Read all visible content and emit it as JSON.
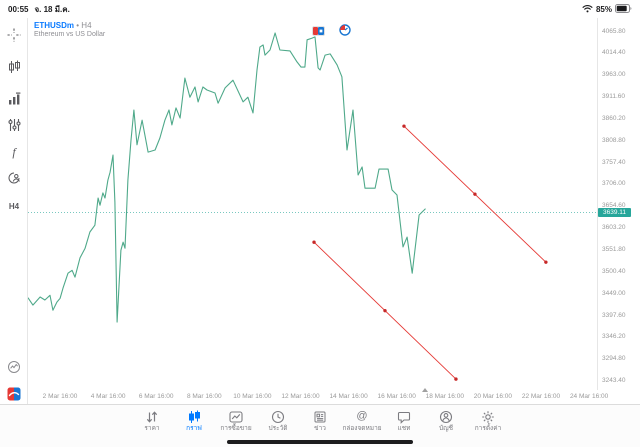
{
  "status_bar": {
    "time": "00:55",
    "date": "จ. 18 มี.ค.",
    "battery_percent": "85%"
  },
  "chart_header": {
    "symbol": "ETHUSDm",
    "separator": "•",
    "timeframe": "H4",
    "description": "Ethereum vs US Dollar"
  },
  "left_toolbar": {
    "timeframe_label": "H4",
    "function_glyph": "f",
    "icons": [
      "crosshair",
      "chart-style-candles",
      "volumes",
      "indicator-sliders",
      "functions",
      "objects",
      "timeframe",
      "tick-chart",
      "brand-app"
    ]
  },
  "chart_data": {
    "type": "line",
    "title": "Ethereum vs US Dollar",
    "symbol": "ETHUSDm",
    "timeframe": "H4",
    "line_color": "#4fa98a",
    "trend_color": "#e53935",
    "trend_dot_color": "#c62828",
    "current_price_color": "#4db6ac",
    "current_price": 3639.11,
    "current_price_label": "3639.11",
    "ylim": [
      3221,
      4096
    ],
    "y_ticks": [
      4065.8,
      4014.4,
      3963.0,
      3911.6,
      3860.2,
      3808.8,
      3757.4,
      3706.0,
      3654.6,
      3603.2,
      3551.8,
      3500.4,
      3449.0,
      3397.6,
      3346.2,
      3294.8,
      3243.4
    ],
    "x_unit": "day of March (.667 = 16:00)",
    "x_ticks": [
      {
        "day": 2.667,
        "label": "2 Mar 16:00"
      },
      {
        "day": 4.667,
        "label": "4 Mar 16:00"
      },
      {
        "day": 6.667,
        "label": "6 Mar 16:00"
      },
      {
        "day": 8.667,
        "label": "8 Mar 16:00"
      },
      {
        "day": 10.667,
        "label": "10 Mar 16:00"
      },
      {
        "day": 12.667,
        "label": "12 Mar 16:00"
      },
      {
        "day": 14.667,
        "label": "14 Mar 16:00"
      },
      {
        "day": 16.667,
        "label": "16 Mar 16:00"
      },
      {
        "day": 18.667,
        "label": "18 Mar 16:00"
      },
      {
        "day": 20.667,
        "label": "20 Mar 16:00"
      },
      {
        "day": 22.667,
        "label": "22 Mar 16:00"
      },
      {
        "day": 24.667,
        "label": "24 Mar 16:00"
      }
    ],
    "series": [
      {
        "name": "ETHUSDm close (H4)",
        "points": [
          [
            1.34,
            3438
          ],
          [
            1.54,
            3421
          ],
          [
            1.84,
            3440
          ],
          [
            2.04,
            3433
          ],
          [
            2.25,
            3444
          ],
          [
            2.37,
            3409
          ],
          [
            2.54,
            3428
          ],
          [
            2.67,
            3437
          ],
          [
            2.79,
            3461
          ],
          [
            3.0,
            3496
          ],
          [
            3.17,
            3503
          ],
          [
            3.29,
            3487
          ],
          [
            3.5,
            3532
          ],
          [
            3.71,
            3555
          ],
          [
            3.91,
            3593
          ],
          [
            4.12,
            3609
          ],
          [
            4.25,
            3673
          ],
          [
            4.33,
            3656
          ],
          [
            4.45,
            3685
          ],
          [
            4.54,
            3673
          ],
          [
            4.66,
            3715
          ],
          [
            4.75,
            3734
          ],
          [
            4.87,
            3774
          ],
          [
            4.95,
            3663
          ],
          [
            5.04,
            3381
          ],
          [
            5.2,
            3550
          ],
          [
            5.29,
            3569
          ],
          [
            5.37,
            3555
          ],
          [
            5.49,
            3715
          ],
          [
            5.62,
            3809
          ],
          [
            5.74,
            3880
          ],
          [
            5.87,
            3798
          ],
          [
            6.08,
            3856
          ],
          [
            6.33,
            3781
          ],
          [
            6.62,
            3786
          ],
          [
            6.82,
            3814
          ],
          [
            7.03,
            3856
          ],
          [
            7.2,
            3880
          ],
          [
            7.32,
            3845
          ],
          [
            7.49,
            3885
          ],
          [
            7.66,
            3861
          ],
          [
            7.86,
            3955
          ],
          [
            8.07,
            3910
          ],
          [
            8.28,
            3934
          ],
          [
            8.41,
            3899
          ],
          [
            8.61,
            3934
          ],
          [
            8.78,
            3927
          ],
          [
            9.11,
            3920
          ],
          [
            9.24,
            3896
          ],
          [
            9.53,
            3932
          ],
          [
            9.86,
            3950
          ],
          [
            10.28,
            3899
          ],
          [
            10.48,
            3910
          ],
          [
            10.69,
            3873
          ],
          [
            10.86,
            3974
          ],
          [
            10.98,
            4028
          ],
          [
            11.11,
            4033
          ],
          [
            11.19,
            4009
          ],
          [
            11.4,
            4021
          ],
          [
            11.61,
            4061
          ],
          [
            11.81,
            4021
          ],
          [
            12.23,
            4019
          ],
          [
            12.52,
            3993
          ],
          [
            12.69,
            3981
          ],
          [
            12.85,
            3981
          ],
          [
            12.94,
            4045
          ],
          [
            13.15,
            4049
          ],
          [
            13.27,
            4052
          ],
          [
            13.4,
            3979
          ],
          [
            13.48,
            3974
          ],
          [
            13.69,
            4009
          ],
          [
            13.9,
            4012
          ],
          [
            14.19,
            3986
          ],
          [
            14.39,
            3958
          ],
          [
            14.6,
            3786
          ],
          [
            14.85,
            3880
          ],
          [
            15.06,
            3727
          ],
          [
            15.23,
            3746
          ],
          [
            15.35,
            3696
          ],
          [
            15.77,
            3696
          ],
          [
            15.93,
            3741
          ],
          [
            16.31,
            3741
          ],
          [
            16.47,
            3692
          ],
          [
            16.68,
            3680
          ],
          [
            16.93,
            3558
          ],
          [
            17.1,
            3581
          ],
          [
            17.31,
            3496
          ],
          [
            17.6,
            3633
          ],
          [
            17.85,
            3647
          ]
        ]
      }
    ],
    "trendlines": [
      {
        "name": "trendline-upper",
        "from": [
          16.97,
          3842
        ],
        "to": [
          22.87,
          3522
        ]
      },
      {
        "name": "trendline-lower",
        "from": [
          13.23,
          3569
        ],
        "to": [
          19.13,
          3247
        ]
      }
    ],
    "now_marker_day": 17.85,
    "legend": "none",
    "grid": "off"
  },
  "bottom_nav": {
    "active_index": 1,
    "items": [
      {
        "label": "ราคา",
        "icon": "quotes-arrows"
      },
      {
        "label": "กราฟ",
        "icon": "chart-candles"
      },
      {
        "label": "การซื้อขาย",
        "icon": "trade-chart-box"
      },
      {
        "label": "ประวัติ",
        "icon": "history-clock"
      },
      {
        "label": "ข่าว",
        "icon": "news-paper"
      },
      {
        "label": "กล่องจดหมาย",
        "icon": "mailbox-at",
        "glyph": "@"
      },
      {
        "label": "แชท",
        "icon": "chat-bubble"
      },
      {
        "label": "บัญชี",
        "icon": "account-person"
      },
      {
        "label": "การตั้งค่า",
        "icon": "settings-gear"
      }
    ]
  }
}
